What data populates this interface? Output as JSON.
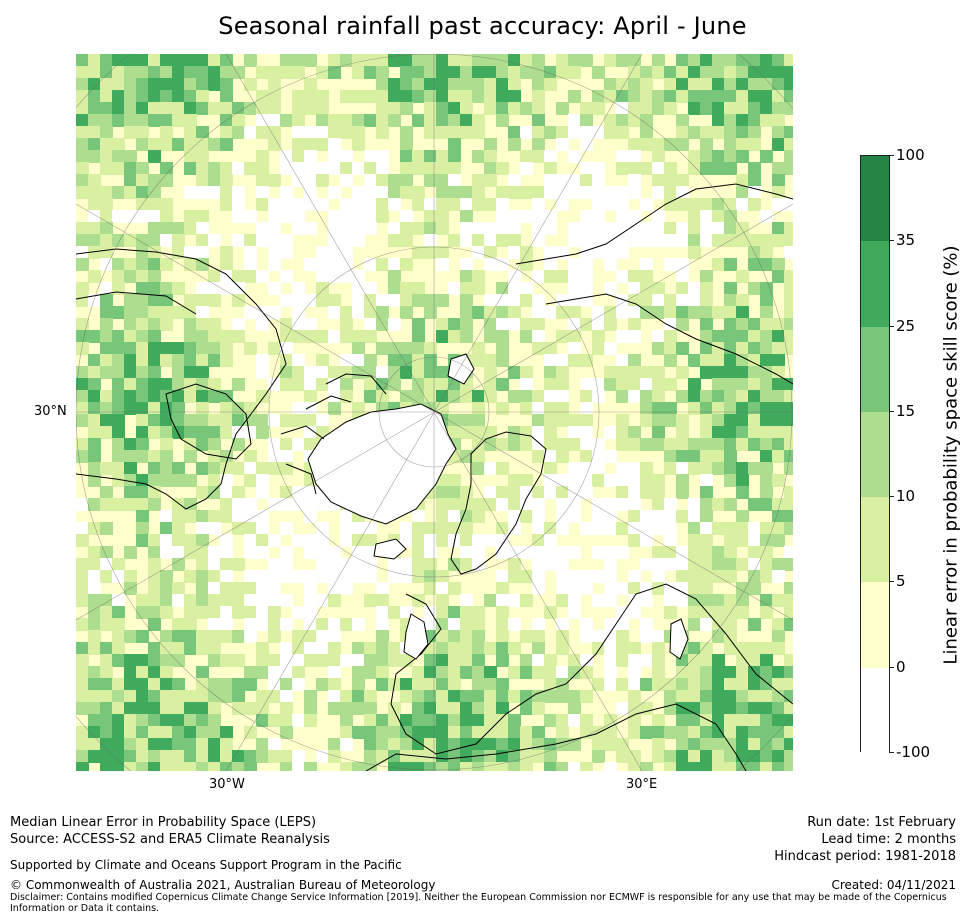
{
  "title": "Seasonal rainfall past accuracy: April - June",
  "map": {
    "projection": "north-polar-stereographic",
    "labels": {
      "lat_30n": "30°N",
      "lon_30w": "30°W",
      "lon_30e": "30°E"
    }
  },
  "colorbar": {
    "label": "Linear error in probability space skill score (%)",
    "ticks": [
      "-100",
      "0",
      "5",
      "10",
      "15",
      "25",
      "35",
      "100"
    ],
    "colors": [
      "#ffffff",
      "#ffffcc",
      "#d9f0a3",
      "#addd8e",
      "#78c679",
      "#41ab5d",
      "#238443"
    ]
  },
  "footer": {
    "left_line1": "Median Linear Error in Probability Space (LEPS)",
    "left_line2": "Source: ACCESS-S2 and ERA5 Climate Reanalysis",
    "support": "Supported by Climate and Oceans Support Program in the Pacific",
    "copyright": "© Commonwealth of Australia 2021, Australian Bureau of Meteorology",
    "disclaimer": "Disclaimer: Contains modified Copernicus Climate Change Service Information [2019]. Neither the European Commission nor ECMWF is responsible for any use that may be made of the Copernicus Information or Data it contains.",
    "run_date": "Run date: 1st February",
    "lead_time": "Lead time: 2 months",
    "hindcast": "Hindcast period: 1981-2018",
    "created": "Created: 04/11/2021"
  }
}
